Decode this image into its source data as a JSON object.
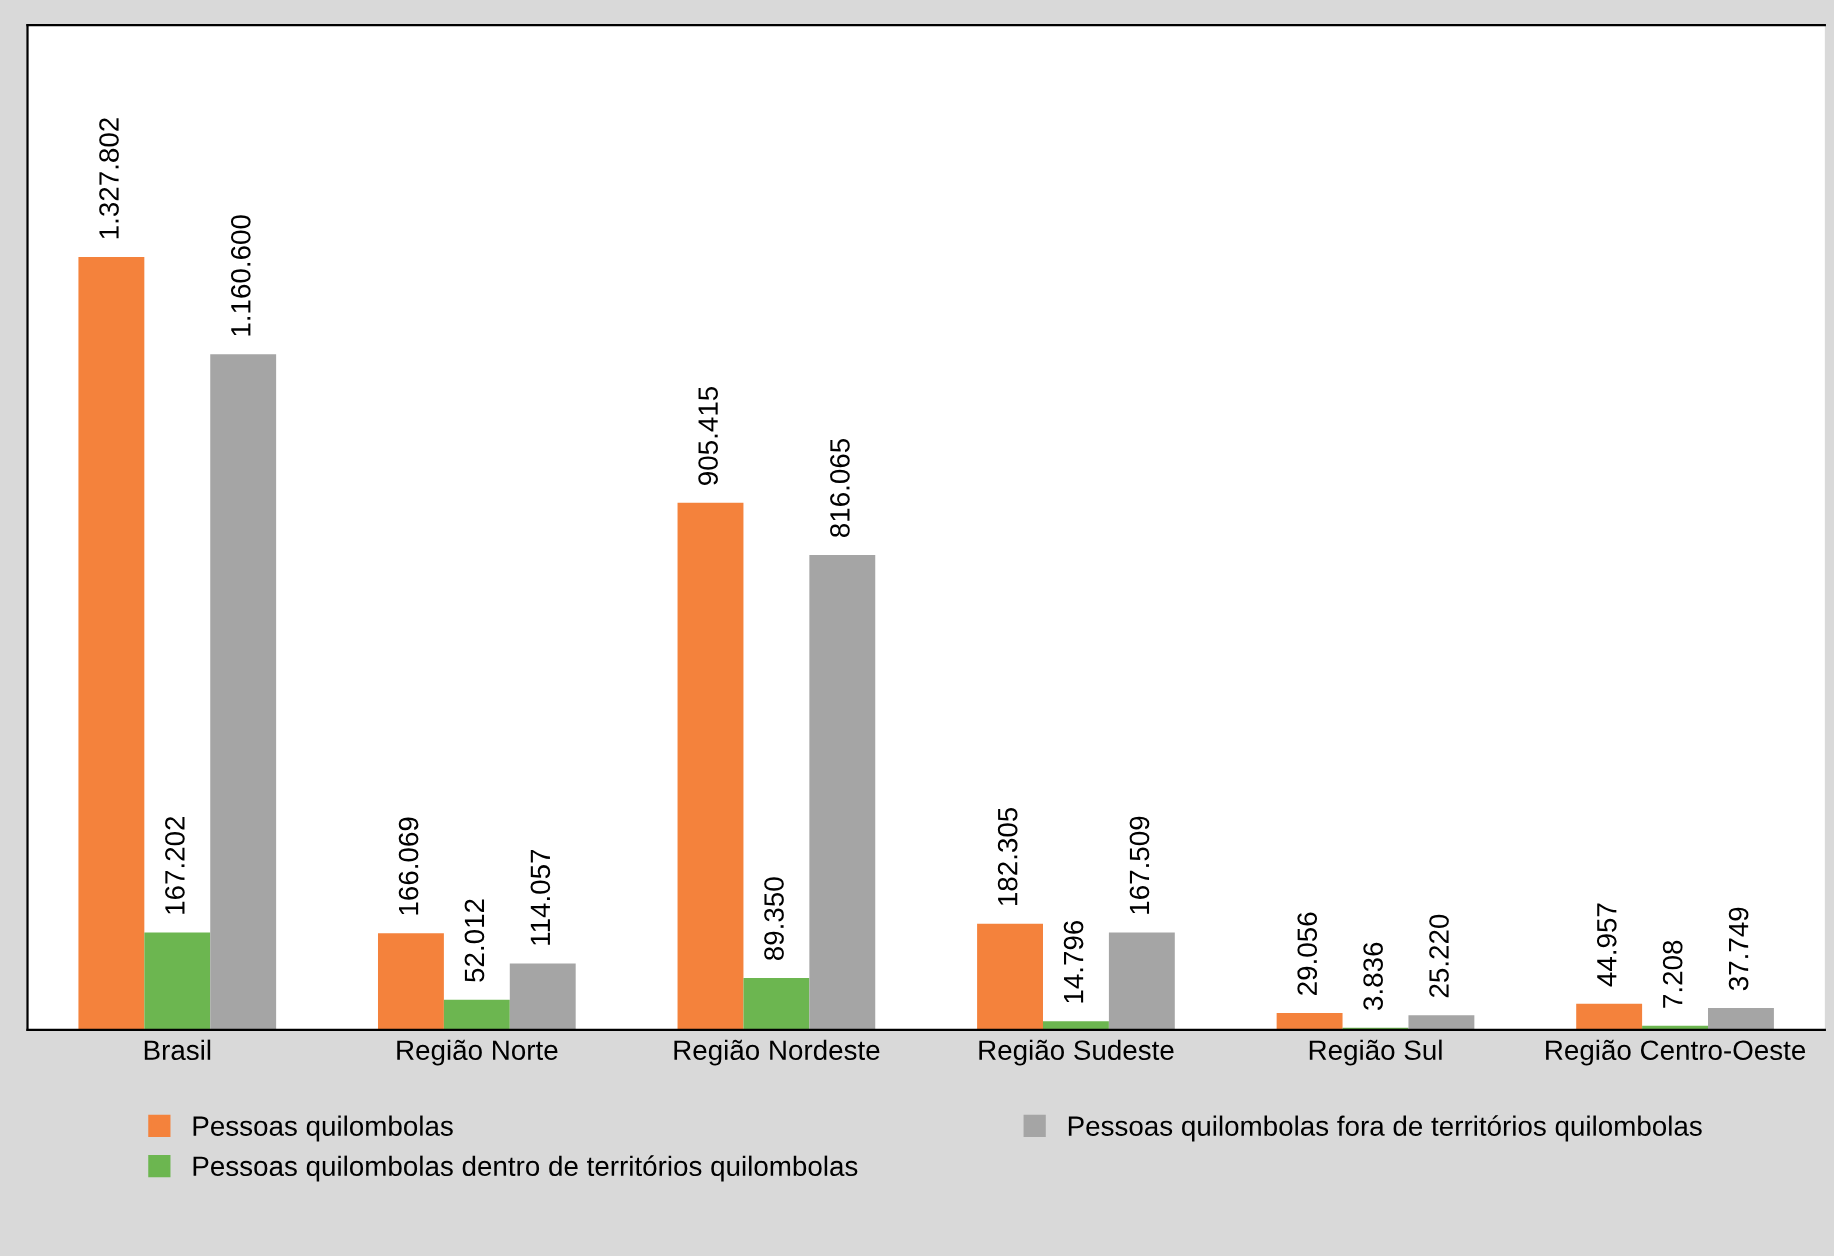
{
  "chart_data": {
    "type": "bar",
    "categories": [
      "Brasil",
      "Região Norte",
      "Região Nordeste",
      "Região Sudeste",
      "Região Sul",
      "Região Centro-Oeste"
    ],
    "series": [
      {
        "name": "Pessoas quilombolas",
        "color": "#f4823c",
        "values": [
          1327802,
          166069,
          905415,
          182305,
          29056,
          44957
        ],
        "value_labels": [
          "1.327.802",
          "166.069",
          "905.415",
          "182.305",
          "29.056",
          "44.957"
        ]
      },
      {
        "name": "Pessoas quilombolas dentro de territórios quilombolas",
        "color": "#6cb650",
        "values": [
          167202,
          52012,
          89350,
          14796,
          3836,
          7208
        ],
        "value_labels": [
          "167.202",
          "52.012",
          "89.350",
          "14.796",
          "3.836",
          "7.208"
        ]
      },
      {
        "name": "Pessoas quilombolas fora de territórios quilombolas",
        "color": "#a5a5a5",
        "values": [
          1160600,
          114057,
          816065,
          167509,
          25220,
          37749
        ],
        "value_labels": [
          "1.160.600",
          "114.057",
          "816.065",
          "167.509",
          "25.220",
          "37.749"
        ]
      }
    ],
    "legend": "bottom",
    "grid": false,
    "tick_labels": "x"
  }
}
